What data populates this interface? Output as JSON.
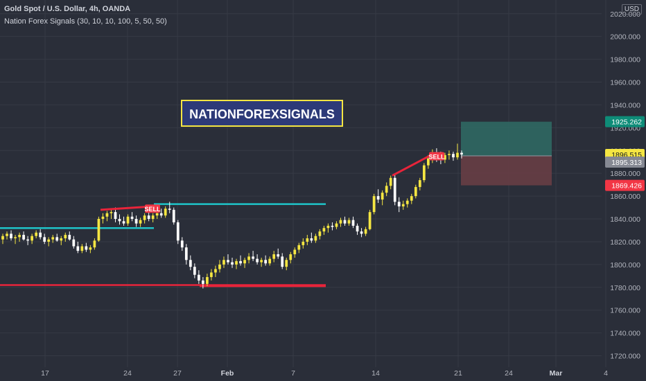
{
  "header": {
    "symbol_line": "Gold Spot / U.S. Dollar, 4h, OANDA",
    "indicator_line": "Nation Forex Signals  (30, 10, 10, 100, 5, 50, 50)",
    "currency": "USD"
  },
  "watermark": {
    "text": "NATIONFOREXSIGNALS"
  },
  "colors": {
    "background": "#2a2e39",
    "grid": "#363a45",
    "axis_text": "#b2b5be",
    "bull_candle": "#f5e642",
    "bear_candle": "#ffffff",
    "support_line": "#1fc4c9",
    "trend_line": "#e8243a",
    "target_zone": "#2f6b65",
    "stop_zone": "#6b3e45",
    "current_price": "#f5e642",
    "entry_price": "#868993",
    "target_price": "#0e8c78",
    "stop_price": "#f23645"
  },
  "chart_data": {
    "type": "candlestick",
    "y_ticks": [
      "2020.000",
      "2000.000",
      "1980.000",
      "1960.000",
      "1940.000",
      "1920.000",
      "1900.000",
      "1880.000",
      "1860.000",
      "1840.000",
      "1820.000",
      "1800.000",
      "1780.000",
      "1760.000",
      "1740.000",
      "1720.000"
    ],
    "ylim": [
      1710,
      2032
    ],
    "x_ticks": [
      "17",
      "24",
      "27",
      "Feb",
      "7",
      "14",
      "21",
      "24",
      "Mar",
      "4"
    ],
    "price_labels": [
      {
        "label": "1925.262",
        "value": 1925.262,
        "kind": "target"
      },
      {
        "label": "1896.515",
        "value": 1896.515,
        "kind": "current"
      },
      {
        "label": "1895.313",
        "value": 1895.313,
        "kind": "entry"
      },
      {
        "label": "1869.426",
        "value": 1869.426,
        "kind": "stop"
      }
    ],
    "signals": [
      {
        "label": "SELL",
        "date_approx": "Jan 25",
        "price": 1849
      },
      {
        "label": "SELL",
        "date_approx": "Feb 18",
        "price": 1895
      }
    ],
    "horizontal_levels": [
      {
        "name": "support",
        "price": 1832,
        "from": "Jan 12",
        "to": "Jan 25"
      },
      {
        "name": "support",
        "price": 1853,
        "from": "Jan 25",
        "to": "Feb 8"
      },
      {
        "name": "resistance",
        "price": 1782,
        "from": "Jan 12",
        "to": "Feb 8"
      },
      {
        "name": "resistance",
        "price": 1781,
        "from": "Jan 28",
        "to": "Feb 8"
      }
    ],
    "trend_lines": [
      {
        "from": {
          "date": "Jan 20",
          "price": 1848
        },
        "to": {
          "date": "Jan 25",
          "price": 1851
        }
      },
      {
        "from": {
          "date": "Feb 15",
          "price": 1878
        },
        "to": {
          "date": "Feb 18",
          "price": 1896
        }
      }
    ],
    "position": {
      "entry": 1895.313,
      "target": 1925.262,
      "stop": 1869.426
    },
    "candles": [
      {
        "o": 1822,
        "h": 1827,
        "l": 1818,
        "c": 1825
      },
      {
        "o": 1825,
        "h": 1829,
        "l": 1822,
        "c": 1827
      },
      {
        "o": 1827,
        "h": 1830,
        "l": 1821,
        "c": 1823
      },
      {
        "o": 1823,
        "h": 1826,
        "l": 1818,
        "c": 1824
      },
      {
        "o": 1824,
        "h": 1828,
        "l": 1820,
        "c": 1826
      },
      {
        "o": 1826,
        "h": 1829,
        "l": 1821,
        "c": 1822
      },
      {
        "o": 1822,
        "h": 1825,
        "l": 1817,
        "c": 1821
      },
      {
        "o": 1821,
        "h": 1827,
        "l": 1818,
        "c": 1825
      },
      {
        "o": 1825,
        "h": 1830,
        "l": 1823,
        "c": 1828
      },
      {
        "o": 1828,
        "h": 1831,
        "l": 1822,
        "c": 1824
      },
      {
        "o": 1824,
        "h": 1827,
        "l": 1818,
        "c": 1820
      },
      {
        "o": 1820,
        "h": 1824,
        "l": 1816,
        "c": 1822
      },
      {
        "o": 1822,
        "h": 1826,
        "l": 1819,
        "c": 1824
      },
      {
        "o": 1824,
        "h": 1827,
        "l": 1820,
        "c": 1821
      },
      {
        "o": 1821,
        "h": 1825,
        "l": 1817,
        "c": 1823
      },
      {
        "o": 1823,
        "h": 1828,
        "l": 1820,
        "c": 1826
      },
      {
        "o": 1826,
        "h": 1829,
        "l": 1821,
        "c": 1822
      },
      {
        "o": 1822,
        "h": 1825,
        "l": 1814,
        "c": 1816
      },
      {
        "o": 1816,
        "h": 1820,
        "l": 1810,
        "c": 1812
      },
      {
        "o": 1812,
        "h": 1818,
        "l": 1810,
        "c": 1816
      },
      {
        "o": 1816,
        "h": 1819,
        "l": 1811,
        "c": 1813
      },
      {
        "o": 1813,
        "h": 1817,
        "l": 1810,
        "c": 1815
      },
      {
        "o": 1815,
        "h": 1823,
        "l": 1813,
        "c": 1821
      },
      {
        "o": 1821,
        "h": 1842,
        "l": 1820,
        "c": 1840
      },
      {
        "o": 1840,
        "h": 1845,
        "l": 1836,
        "c": 1842
      },
      {
        "o": 1842,
        "h": 1847,
        "l": 1838,
        "c": 1845
      },
      {
        "o": 1845,
        "h": 1849,
        "l": 1840,
        "c": 1846
      },
      {
        "o": 1846,
        "h": 1850,
        "l": 1837,
        "c": 1840
      },
      {
        "o": 1840,
        "h": 1844,
        "l": 1835,
        "c": 1838
      },
      {
        "o": 1838,
        "h": 1842,
        "l": 1834,
        "c": 1836
      },
      {
        "o": 1836,
        "h": 1844,
        "l": 1834,
        "c": 1842
      },
      {
        "o": 1842,
        "h": 1846,
        "l": 1838,
        "c": 1840
      },
      {
        "o": 1840,
        "h": 1843,
        "l": 1833,
        "c": 1836
      },
      {
        "o": 1836,
        "h": 1841,
        "l": 1833,
        "c": 1839
      },
      {
        "o": 1839,
        "h": 1845,
        "l": 1836,
        "c": 1843
      },
      {
        "o": 1843,
        "h": 1847,
        "l": 1838,
        "c": 1840
      },
      {
        "o": 1840,
        "h": 1845,
        "l": 1837,
        "c": 1843
      },
      {
        "o": 1843,
        "h": 1848,
        "l": 1840,
        "c": 1845
      },
      {
        "o": 1845,
        "h": 1849,
        "l": 1841,
        "c": 1843
      },
      {
        "o": 1843,
        "h": 1851,
        "l": 1841,
        "c": 1849
      },
      {
        "o": 1849,
        "h": 1855,
        "l": 1845,
        "c": 1848
      },
      {
        "o": 1848,
        "h": 1850,
        "l": 1835,
        "c": 1837
      },
      {
        "o": 1837,
        "h": 1839,
        "l": 1818,
        "c": 1821
      },
      {
        "o": 1821,
        "h": 1824,
        "l": 1812,
        "c": 1815
      },
      {
        "o": 1815,
        "h": 1818,
        "l": 1800,
        "c": 1804
      },
      {
        "o": 1804,
        "h": 1808,
        "l": 1795,
        "c": 1798
      },
      {
        "o": 1798,
        "h": 1801,
        "l": 1788,
        "c": 1791
      },
      {
        "o": 1791,
        "h": 1795,
        "l": 1783,
        "c": 1786
      },
      {
        "o": 1786,
        "h": 1789,
        "l": 1779,
        "c": 1783
      },
      {
        "o": 1783,
        "h": 1792,
        "l": 1781,
        "c": 1789
      },
      {
        "o": 1789,
        "h": 1796,
        "l": 1786,
        "c": 1793
      },
      {
        "o": 1793,
        "h": 1799,
        "l": 1789,
        "c": 1796
      },
      {
        "o": 1796,
        "h": 1804,
        "l": 1793,
        "c": 1800
      },
      {
        "o": 1800,
        "h": 1807,
        "l": 1797,
        "c": 1804
      },
      {
        "o": 1804,
        "h": 1809,
        "l": 1800,
        "c": 1802
      },
      {
        "o": 1802,
        "h": 1806,
        "l": 1797,
        "c": 1800
      },
      {
        "o": 1800,
        "h": 1805,
        "l": 1796,
        "c": 1803
      },
      {
        "o": 1803,
        "h": 1808,
        "l": 1799,
        "c": 1801
      },
      {
        "o": 1801,
        "h": 1806,
        "l": 1797,
        "c": 1804
      },
      {
        "o": 1804,
        "h": 1810,
        "l": 1801,
        "c": 1807
      },
      {
        "o": 1807,
        "h": 1812,
        "l": 1803,
        "c": 1805
      },
      {
        "o": 1805,
        "h": 1809,
        "l": 1800,
        "c": 1802
      },
      {
        "o": 1802,
        "h": 1806,
        "l": 1798,
        "c": 1804
      },
      {
        "o": 1804,
        "h": 1808,
        "l": 1799,
        "c": 1801
      },
      {
        "o": 1801,
        "h": 1807,
        "l": 1799,
        "c": 1805
      },
      {
        "o": 1805,
        "h": 1812,
        "l": 1802,
        "c": 1809
      },
      {
        "o": 1809,
        "h": 1814,
        "l": 1805,
        "c": 1807
      },
      {
        "o": 1807,
        "h": 1810,
        "l": 1796,
        "c": 1798
      },
      {
        "o": 1798,
        "h": 1806,
        "l": 1795,
        "c": 1804
      },
      {
        "o": 1804,
        "h": 1811,
        "l": 1801,
        "c": 1809
      },
      {
        "o": 1809,
        "h": 1815,
        "l": 1806,
        "c": 1813
      },
      {
        "o": 1813,
        "h": 1819,
        "l": 1810,
        "c": 1817
      },
      {
        "o": 1817,
        "h": 1823,
        "l": 1814,
        "c": 1820
      },
      {
        "o": 1820,
        "h": 1826,
        "l": 1817,
        "c": 1823
      },
      {
        "o": 1823,
        "h": 1828,
        "l": 1819,
        "c": 1821
      },
      {
        "o": 1821,
        "h": 1827,
        "l": 1819,
        "c": 1825
      },
      {
        "o": 1825,
        "h": 1831,
        "l": 1822,
        "c": 1829
      },
      {
        "o": 1829,
        "h": 1834,
        "l": 1826,
        "c": 1832
      },
      {
        "o": 1832,
        "h": 1836,
        "l": 1828,
        "c": 1834
      },
      {
        "o": 1834,
        "h": 1837,
        "l": 1830,
        "c": 1833
      },
      {
        "o": 1833,
        "h": 1838,
        "l": 1831,
        "c": 1836
      },
      {
        "o": 1836,
        "h": 1841,
        "l": 1833,
        "c": 1839
      },
      {
        "o": 1839,
        "h": 1842,
        "l": 1834,
        "c": 1836
      },
      {
        "o": 1836,
        "h": 1841,
        "l": 1834,
        "c": 1839
      },
      {
        "o": 1839,
        "h": 1842,
        "l": 1832,
        "c": 1834
      },
      {
        "o": 1834,
        "h": 1836,
        "l": 1826,
        "c": 1829
      },
      {
        "o": 1829,
        "h": 1832,
        "l": 1824,
        "c": 1827
      },
      {
        "o": 1827,
        "h": 1833,
        "l": 1825,
        "c": 1831
      },
      {
        "o": 1831,
        "h": 1848,
        "l": 1830,
        "c": 1846
      },
      {
        "o": 1846,
        "h": 1862,
        "l": 1844,
        "c": 1860
      },
      {
        "o": 1860,
        "h": 1866,
        "l": 1854,
        "c": 1857
      },
      {
        "o": 1857,
        "h": 1865,
        "l": 1852,
        "c": 1863
      },
      {
        "o": 1863,
        "h": 1872,
        "l": 1860,
        "c": 1869
      },
      {
        "o": 1869,
        "h": 1878,
        "l": 1866,
        "c": 1876
      },
      {
        "o": 1876,
        "h": 1879,
        "l": 1852,
        "c": 1855
      },
      {
        "o": 1855,
        "h": 1859,
        "l": 1846,
        "c": 1851
      },
      {
        "o": 1851,
        "h": 1856,
        "l": 1848,
        "c": 1853
      },
      {
        "o": 1853,
        "h": 1858,
        "l": 1850,
        "c": 1856
      },
      {
        "o": 1856,
        "h": 1862,
        "l": 1853,
        "c": 1860
      },
      {
        "o": 1860,
        "h": 1870,
        "l": 1858,
        "c": 1868
      },
      {
        "o": 1868,
        "h": 1876,
        "l": 1865,
        "c": 1874
      },
      {
        "o": 1874,
        "h": 1889,
        "l": 1872,
        "c": 1887
      },
      {
        "o": 1887,
        "h": 1896,
        "l": 1884,
        "c": 1893
      },
      {
        "o": 1893,
        "h": 1901,
        "l": 1889,
        "c": 1897
      },
      {
        "o": 1897,
        "h": 1902,
        "l": 1890,
        "c": 1894
      },
      {
        "o": 1894,
        "h": 1899,
        "l": 1888,
        "c": 1892
      },
      {
        "o": 1892,
        "h": 1898,
        "l": 1889,
        "c": 1896
      },
      {
        "o": 1896,
        "h": 1900,
        "l": 1892,
        "c": 1897
      },
      {
        "o": 1897,
        "h": 1899,
        "l": 1891,
        "c": 1894
      },
      {
        "o": 1894,
        "h": 1906,
        "l": 1892,
        "c": 1898
      },
      {
        "o": 1898,
        "h": 1900,
        "l": 1893,
        "c": 1896.5
      }
    ]
  }
}
